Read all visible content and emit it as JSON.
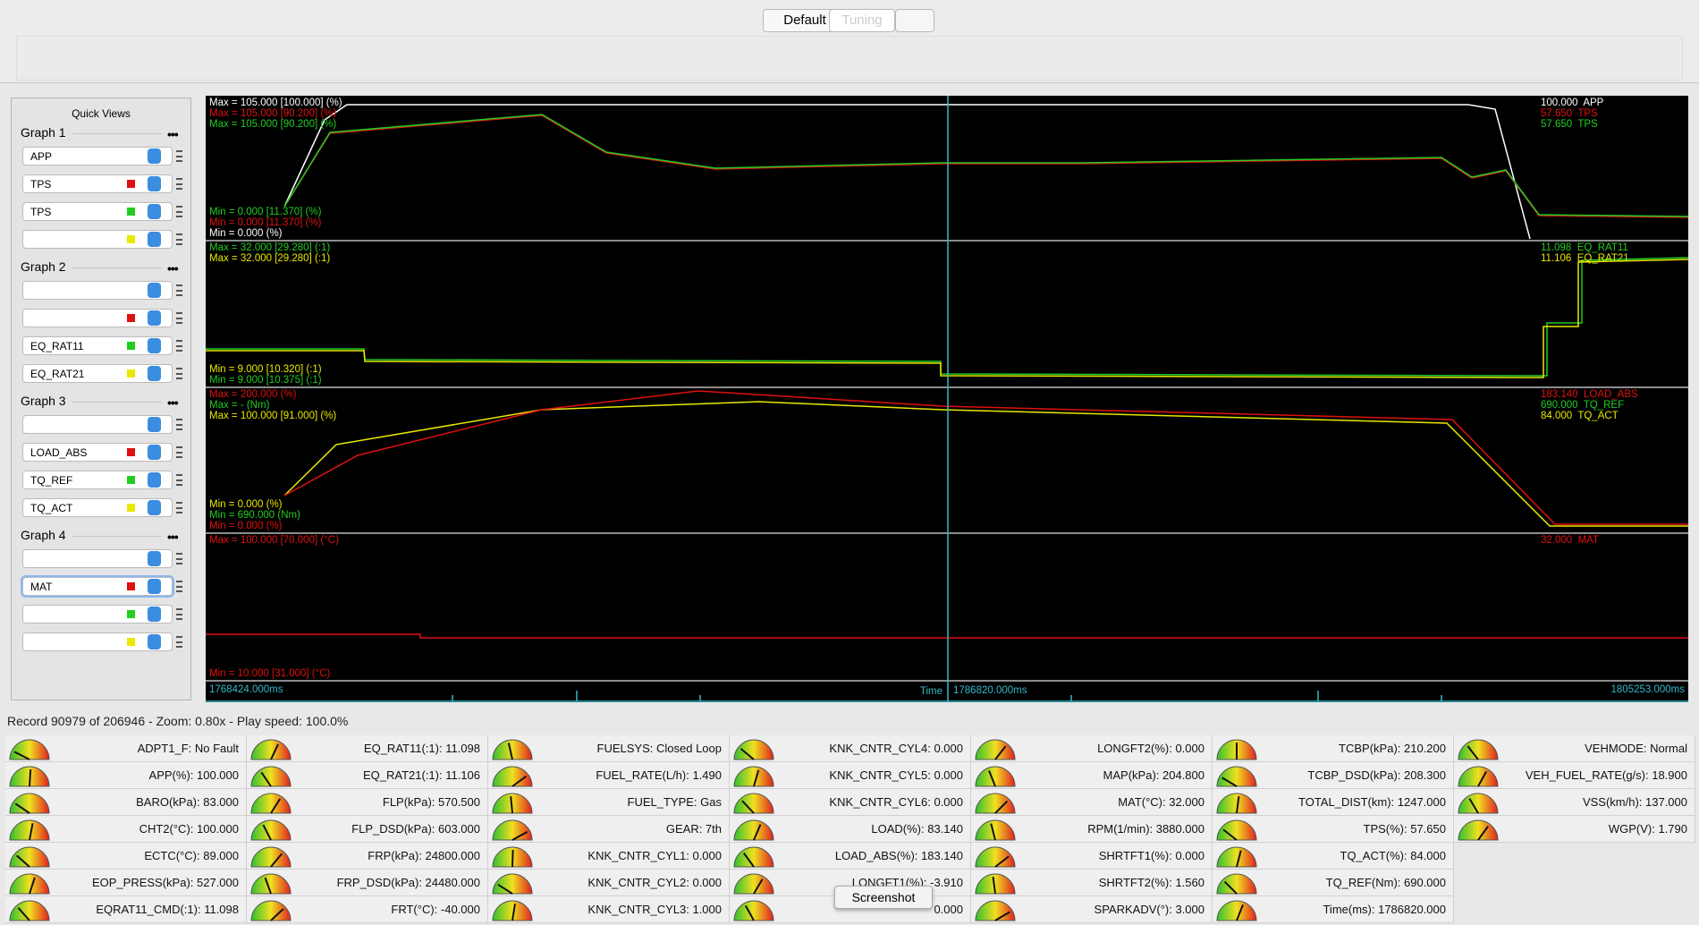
{
  "toolbar": {
    "tabs": [
      "Default",
      "Tuning"
    ]
  },
  "quick_views": {
    "title": "Quick Views",
    "graphs": [
      {
        "title": "Graph 1",
        "channels": [
          {
            "name": "APP"
          },
          {
            "name": "TPS",
            "color": "red"
          },
          {
            "name": "TPS",
            "color": "green"
          },
          {
            "color": "yellow"
          }
        ]
      },
      {
        "title": "Graph 2",
        "channels": [
          {},
          {
            "color": "red"
          },
          {
            "name": "EQ_RAT11",
            "color": "green"
          },
          {
            "name": "EQ_RAT21",
            "color": "yellow"
          }
        ]
      },
      {
        "title": "Graph 3",
        "channels": [
          {},
          {
            "name": "LOAD_ABS",
            "color": "red"
          },
          {
            "name": "TQ_REF",
            "color": "green"
          },
          {
            "name": "TQ_ACT",
            "color": "yellow"
          }
        ]
      },
      {
        "title": "Graph 4",
        "channels": [
          {},
          {
            "name": "MAT",
            "color": "red"
          },
          {
            "color": "green"
          },
          {
            "color": "yellow"
          }
        ]
      }
    ]
  },
  "graphs": [
    {
      "max_labels": [
        {
          "text": "Max = 105.000 [100.000] (%)",
          "color": "white"
        },
        {
          "text": "Max = 105.000 [90.200] (%)",
          "color": "red"
        },
        {
          "text": "Max = 105.000 [90.200] (%)",
          "color": "green"
        }
      ],
      "min_labels": [
        {
          "text": "Min = 0.000 [11.370] (%)",
          "color": "green"
        },
        {
          "text": "Min = 0.000 [11.370] (%)",
          "color": "red"
        },
        {
          "text": "Min = 0.000 (%)",
          "color": "white"
        }
      ],
      "current_labels": [
        {
          "text": "100.000  APP",
          "color": "white"
        },
        {
          "text": "57.650  TPS",
          "color": "red"
        },
        {
          "text": "57.650  TPS",
          "color": "green"
        }
      ]
    },
    {
      "max_labels": [
        {
          "text": "Max = 32.000 [29.280] (:1)",
          "color": "green"
        },
        {
          "text": "Max = 32.000 [29.280] (:1)",
          "color": "yellow"
        }
      ],
      "min_labels": [
        {
          "text": "Min = 9.000 [10.320] (:1)",
          "color": "yellow"
        },
        {
          "text": "Min = 9.000 [10.375] (:1)",
          "color": "green"
        }
      ],
      "current_labels": [
        {
          "text": "11.098  EQ_RAT11",
          "color": "green"
        },
        {
          "text": "11.106  EQ_RAT21",
          "color": "yellow"
        }
      ]
    },
    {
      "max_labels": [
        {
          "text": "Max = 200.000 (%)",
          "color": "red"
        },
        {
          "text": "Max = - (Nm)",
          "color": "green"
        },
        {
          "text": "Max = 100.000 [91.000] (%)",
          "color": "yellow"
        }
      ],
      "min_labels": [
        {
          "text": "Min = 0.000 (%)",
          "color": "yellow"
        },
        {
          "text": "Min = 690.000 (Nm)",
          "color": "green"
        },
        {
          "text": "Min = 0.000 (%)",
          "color": "red"
        }
      ],
      "current_labels": [
        {
          "text": "183.140  LOAD_ABS",
          "color": "red"
        },
        {
          "text": "690.000  TQ_REF",
          "color": "green"
        },
        {
          "text": "84.000  TQ_ACT",
          "color": "yellow"
        }
      ]
    },
    {
      "max_labels": [
        {
          "text": "Max = 100.000 [70.000] (°C)",
          "color": "red"
        }
      ],
      "min_labels": [
        {
          "text": "Min = 10.000 [31.000] (°C)",
          "color": "red"
        }
      ],
      "current_labels": [
        {
          "text": "32.000  MAT",
          "color": "red"
        }
      ]
    }
  ],
  "time_axis": {
    "start": "1768424.000ms",
    "label": "Time",
    "cursor": "1786820.000ms",
    "end": "1805253.000ms"
  },
  "status": "Record 90979 of 206946 - Zoom: 0.80x - Play speed: 100.0%",
  "gauges": [
    [
      "ADPT1_F: No Fault",
      "APP(%): 100.000",
      "BARO(kPa): 83.000",
      "CHT2(°C): 100.000",
      "ECTC(°C): 89.000",
      "EOP_PRESS(kPa): 527.000",
      "EQRAT11_CMD(:1): 11.098"
    ],
    [
      "EQ_RAT11(:1): 11.098",
      "EQ_RAT21(:1): 11.106",
      "FLP(kPa): 570.500",
      "FLP_DSD(kPa): 603.000",
      "FRP(kPa): 24800.000",
      "FRP_DSD(kPa): 24480.000",
      "FRT(°C): -40.000"
    ],
    [
      "FUELSYS: Closed Loop",
      "FUEL_RATE(L/h): 1.490",
      "FUEL_TYPE: Gas",
      "GEAR: 7th",
      "KNK_CNTR_CYL1: 0.000",
      "KNK_CNTR_CYL2: 0.000",
      "KNK_CNTR_CYL3: 1.000"
    ],
    [
      "KNK_CNTR_CYL4: 0.000",
      "KNK_CNTR_CYL5: 0.000",
      "KNK_CNTR_CYL6: 0.000",
      "LOAD(%): 83.140",
      "LOAD_ABS(%): 183.140",
      "LONGFT1(%): -3.910",
      "0.000"
    ],
    [
      "LONGFT2(%): 0.000",
      "MAP(kPa): 204.800",
      "MAT(°C): 32.000",
      "RPM(1/min): 3880.000",
      "SHRTFT1(%): 0.000",
      "SHRTFT2(%): 1.560",
      "SPARKADV(°): 3.000"
    ],
    [
      "TCBP(kPa): 210.200",
      "TCBP_DSD(kPa): 208.300",
      "TOTAL_DIST(km): 1247.000",
      "TPS(%): 57.650",
      "TQ_ACT(%): 84.000",
      "TQ_REF(Nm): 690.000",
      "Time(ms): 1786820.000"
    ],
    [
      "VEHMODE: Normal",
      "VEH_FUEL_RATE(g/s): 18.900",
      "VSS(km/h): 137.000",
      "WGP(V): 1.790"
    ]
  ],
  "tooltip": "Screenshot"
}
